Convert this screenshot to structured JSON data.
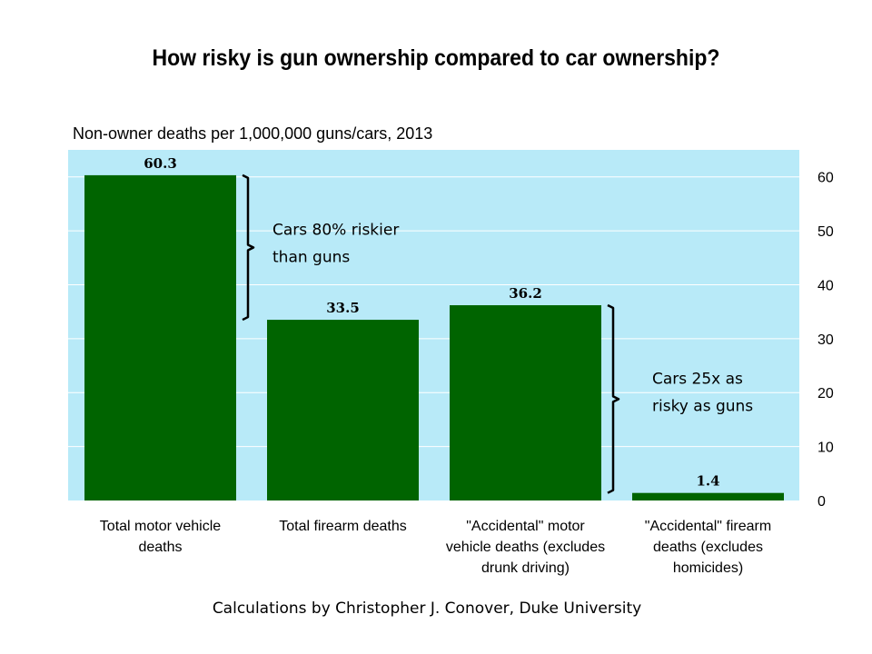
{
  "chart_data": {
    "type": "bar",
    "title": "How risky is gun ownership compared to car ownership?",
    "subtitle": "Non-owner deaths per 1,000,000 guns/cars, 2013",
    "categories": [
      [
        "Total motor vehicle",
        "deaths"
      ],
      [
        "Total firearm deaths"
      ],
      [
        "\"Accidental\" motor",
        "vehicle deaths (excludes",
        "drunk driving)"
      ],
      [
        "\"Accidental\" firearm",
        "deaths (excludes",
        "homicides)"
      ]
    ],
    "values": [
      60.3,
      33.5,
      36.2,
      1.4
    ],
    "data_labels": [
      "60.3",
      "33.5",
      "36.2",
      "1.4"
    ],
    "ylim": [
      0,
      65
    ],
    "yticks": [
      0,
      10,
      20,
      30,
      40,
      50,
      60
    ],
    "y_axis_side": "right",
    "grid": true,
    "colors": {
      "bar": "#006400",
      "plot_bg": "#B8EAF8",
      "grid": "#ffffff"
    },
    "annotations": [
      {
        "lines": [
          "Cars 80% riskier",
          "than guns"
        ],
        "between": [
          0,
          1
        ]
      },
      {
        "lines": [
          "Cars 25x as",
          "risky as guns"
        ],
        "between": [
          2,
          3
        ]
      }
    ]
  },
  "credit": "Calculations by Christopher J. Conover, Duke University"
}
